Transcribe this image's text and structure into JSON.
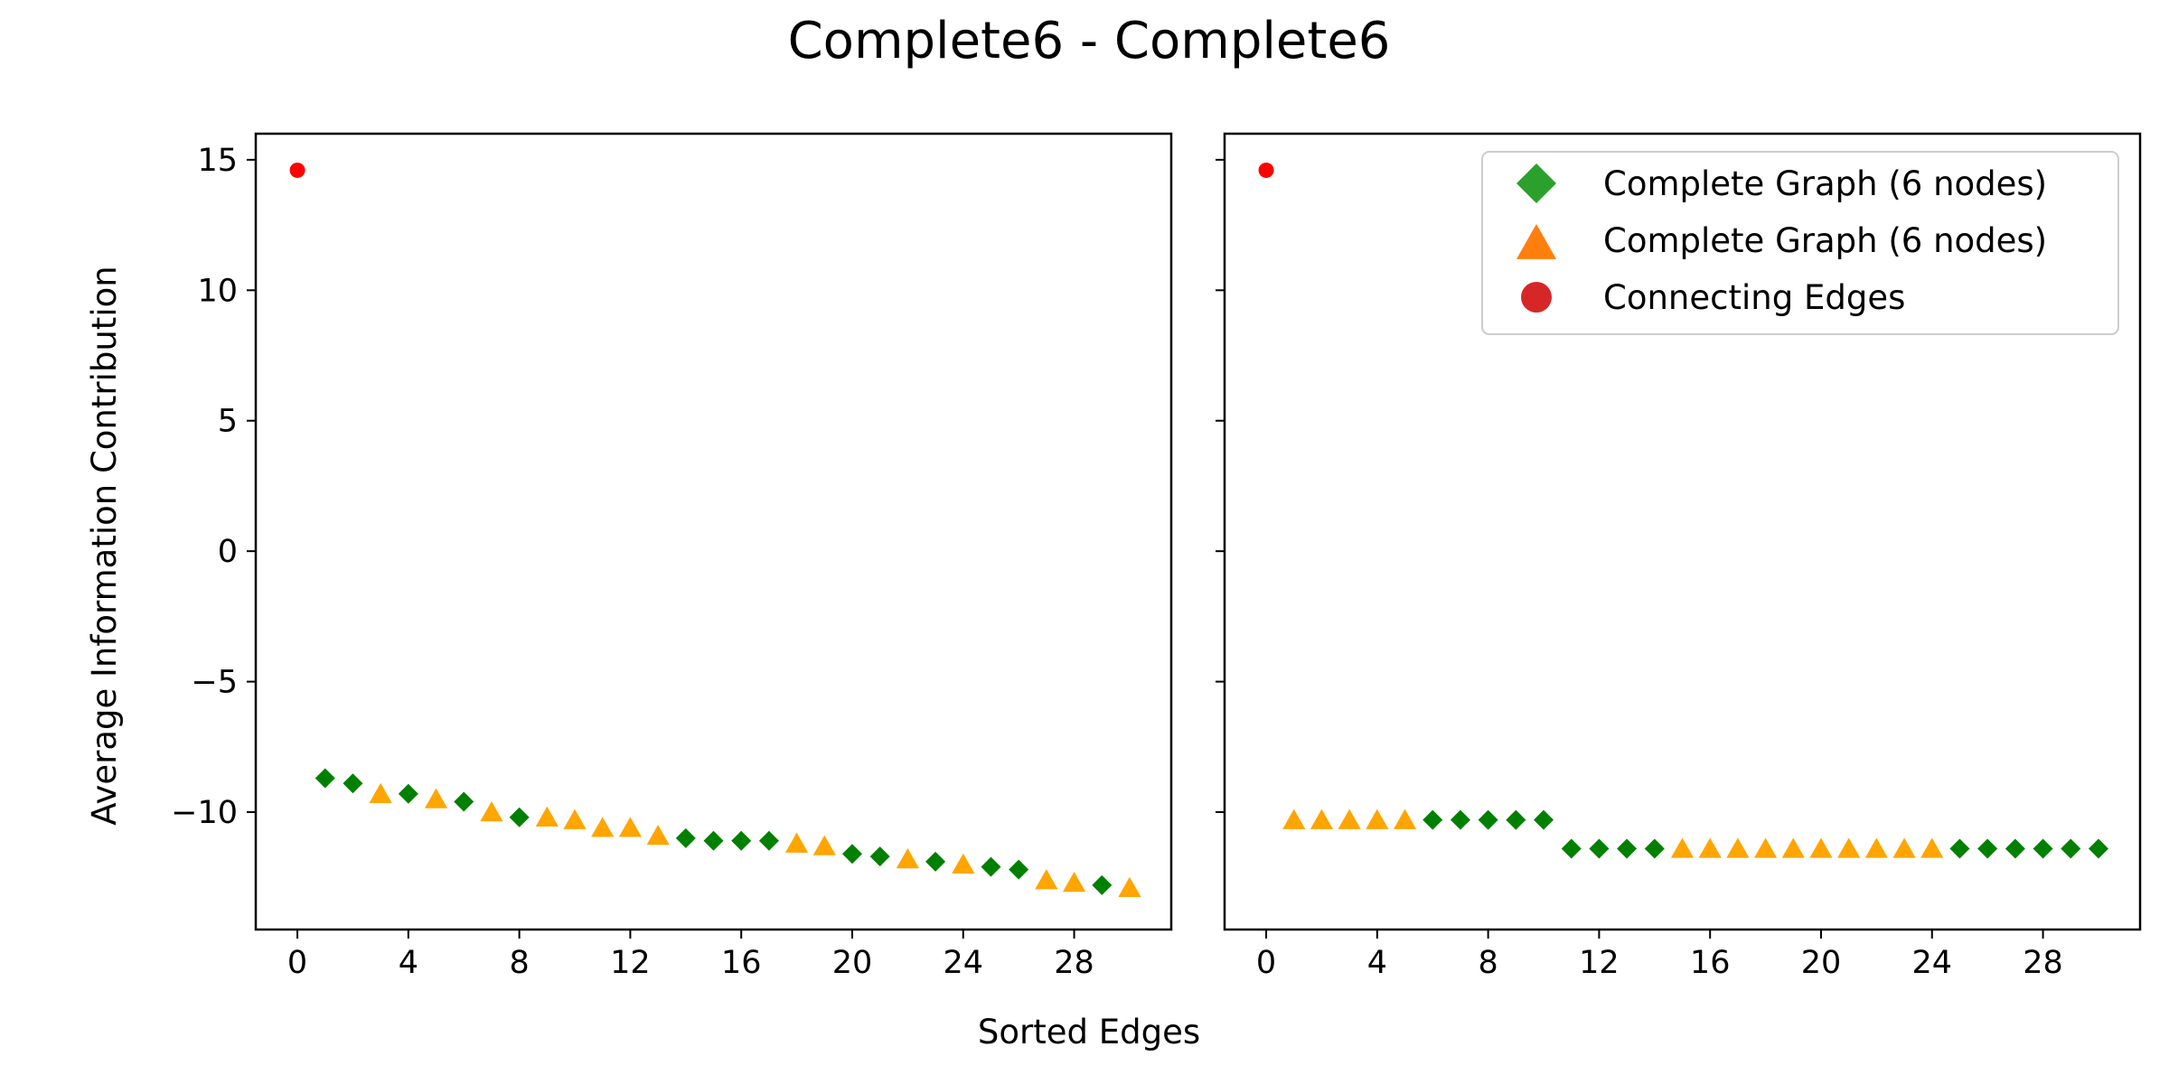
{
  "figure": {
    "title": "Complete6 - Complete6",
    "xlabel": "Sorted Edges",
    "ylabel": "Average Information Contribution"
  },
  "legend": {
    "entries": [
      {
        "label": "Complete Graph (6 nodes)",
        "marker": "diamond",
        "color": "#2ca02c"
      },
      {
        "label": "Complete Graph (6 nodes)",
        "marker": "triangle",
        "color": "#ff7f0e"
      },
      {
        "label": "Connecting Edges",
        "marker": "circle",
        "color": "#d62728"
      }
    ],
    "placement": "top-right of right panel"
  },
  "colors": {
    "green": "#008000",
    "orange": "#ffa500",
    "red": "#ff0000"
  },
  "chart_data": [
    {
      "type": "scatter",
      "panel": "left",
      "xlim": [
        -1.5,
        31.5
      ],
      "ylim": [
        -14.5,
        16
      ],
      "xticks": [
        0,
        4,
        8,
        12,
        16,
        20,
        24,
        28
      ],
      "yticks": [
        15,
        10,
        5,
        0,
        -5,
        -10
      ],
      "ytick_labels": [
        "15",
        "10",
        "5",
        "0",
        "−5",
        "−10"
      ],
      "show_ytick_labels": true,
      "series": [
        {
          "name": "Connecting Edges",
          "marker": "circle",
          "color": "#ff0000",
          "points": [
            [
              0,
              14.6
            ]
          ]
        },
        {
          "name": "Complete Graph (6 nodes)",
          "marker": "diamond",
          "color": "#008000",
          "points": [
            [
              1,
              -8.7
            ],
            [
              2,
              -8.9
            ],
            [
              4,
              -9.3
            ],
            [
              6,
              -9.6
            ],
            [
              8,
              -10.2
            ],
            [
              14,
              -11.0
            ],
            [
              15,
              -11.1
            ],
            [
              16,
              -11.1
            ],
            [
              17,
              -11.1
            ],
            [
              20,
              -11.6
            ],
            [
              21,
              -11.7
            ],
            [
              23,
              -11.9
            ],
            [
              25,
              -12.1
            ],
            [
              26,
              -12.2
            ],
            [
              29,
              -12.8
            ]
          ]
        },
        {
          "name": "Complete Graph (6 nodes)",
          "marker": "triangle",
          "color": "#ffa500",
          "points": [
            [
              3,
              -9.3
            ],
            [
              5,
              -9.5
            ],
            [
              7,
              -10.0
            ],
            [
              9,
              -10.2
            ],
            [
              10,
              -10.3
            ],
            [
              11,
              -10.6
            ],
            [
              12,
              -10.6
            ],
            [
              13,
              -10.9
            ],
            [
              18,
              -11.2
            ],
            [
              19,
              -11.3
            ],
            [
              22,
              -11.8
            ],
            [
              24,
              -12.0
            ],
            [
              27,
              -12.6
            ],
            [
              28,
              -12.7
            ],
            [
              30,
              -12.9
            ]
          ]
        }
      ]
    },
    {
      "type": "scatter",
      "panel": "right",
      "xlim": [
        -1.5,
        31.5
      ],
      "ylim": [
        -14.5,
        16
      ],
      "xticks": [
        0,
        4,
        8,
        12,
        16,
        20,
        24,
        28
      ],
      "yticks": [
        15,
        10,
        5,
        0,
        -5,
        -10
      ],
      "ytick_labels": [
        "",
        "",
        "",
        "",
        "",
        ""
      ],
      "show_ytick_labels": false,
      "series": [
        {
          "name": "Connecting Edges",
          "marker": "circle",
          "color": "#ff0000",
          "points": [
            [
              0,
              14.6
            ]
          ]
        },
        {
          "name": "Complete Graph (6 nodes)",
          "marker": "diamond",
          "color": "#008000",
          "points": [
            [
              6,
              -10.3
            ],
            [
              7,
              -10.3
            ],
            [
              8,
              -10.3
            ],
            [
              9,
              -10.3
            ],
            [
              10,
              -10.3
            ],
            [
              11,
              -11.4
            ],
            [
              12,
              -11.4
            ],
            [
              13,
              -11.4
            ],
            [
              14,
              -11.4
            ],
            [
              25,
              -11.4
            ],
            [
              26,
              -11.4
            ],
            [
              27,
              -11.4
            ],
            [
              28,
              -11.4
            ],
            [
              29,
              -11.4
            ],
            [
              30,
              -11.4
            ]
          ]
        },
        {
          "name": "Complete Graph (6 nodes)",
          "marker": "triangle",
          "color": "#ffa500",
          "points": [
            [
              1,
              -10.3
            ],
            [
              2,
              -10.3
            ],
            [
              3,
              -10.3
            ],
            [
              4,
              -10.3
            ],
            [
              5,
              -10.3
            ],
            [
              15,
              -11.4
            ],
            [
              16,
              -11.4
            ],
            [
              17,
              -11.4
            ],
            [
              18,
              -11.4
            ],
            [
              19,
              -11.4
            ],
            [
              20,
              -11.4
            ],
            [
              21,
              -11.4
            ],
            [
              22,
              -11.4
            ],
            [
              23,
              -11.4
            ],
            [
              24,
              -11.4
            ]
          ]
        }
      ]
    }
  ]
}
